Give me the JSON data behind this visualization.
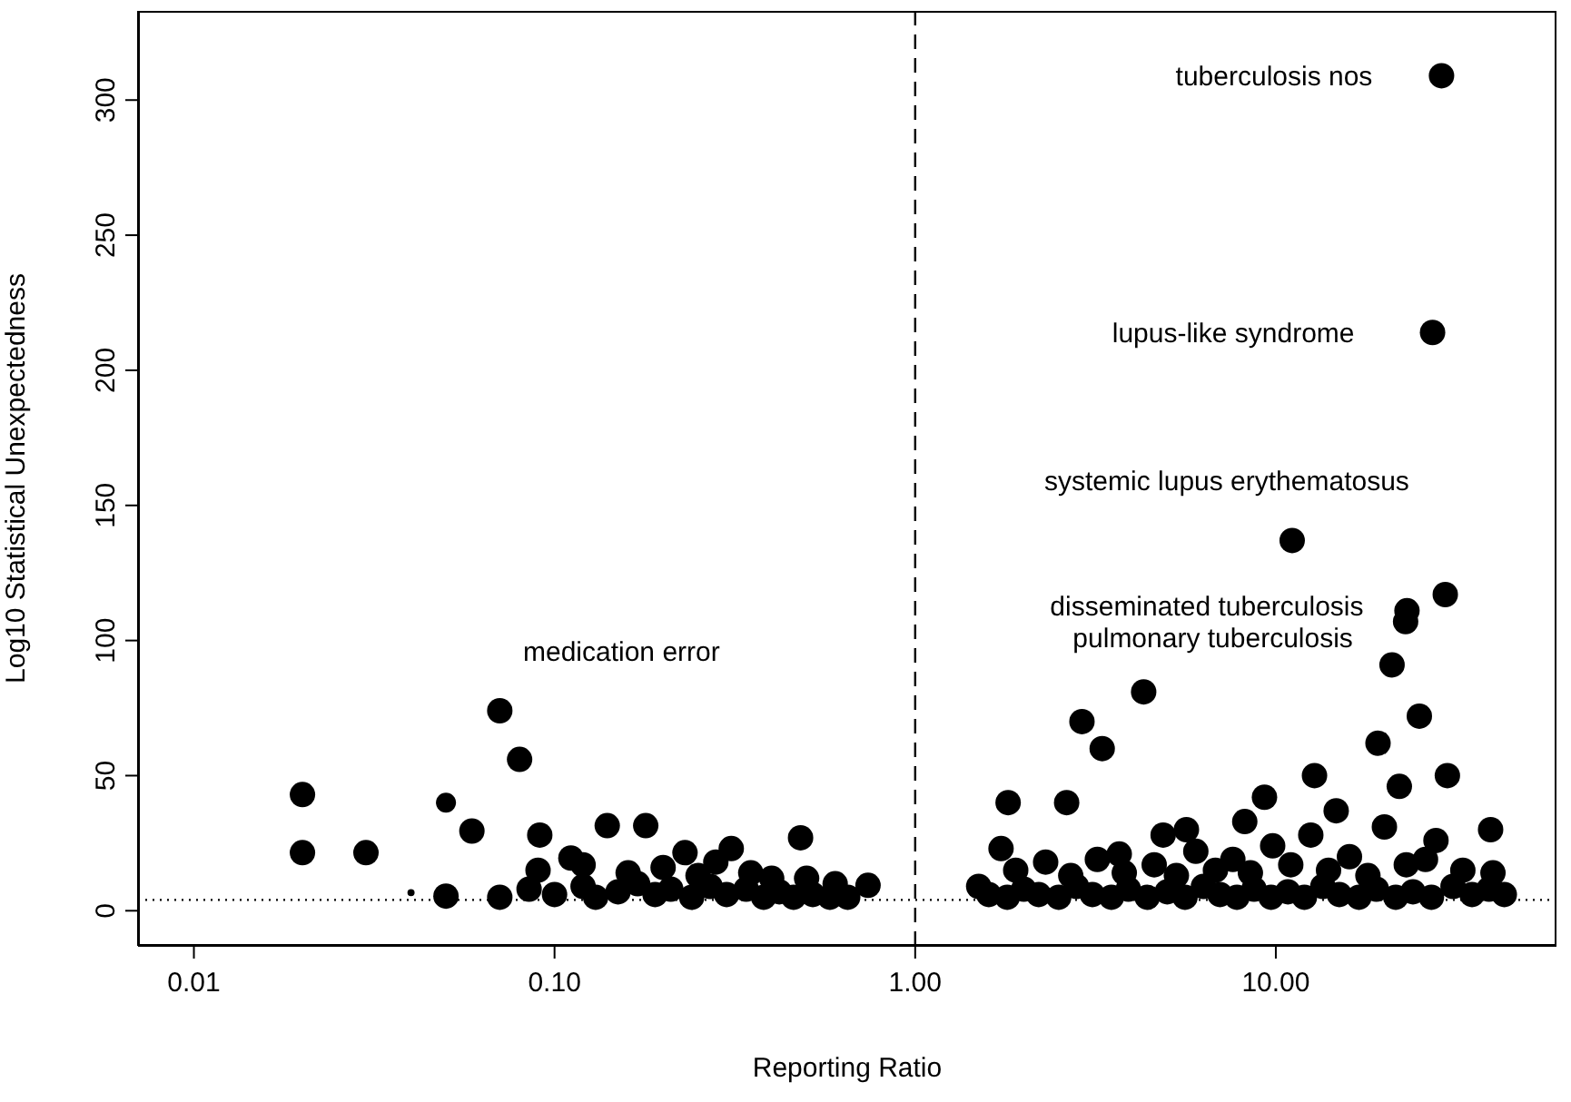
{
  "chart_data": {
    "type": "bubble",
    "xlabel": "Reporting Ratio",
    "ylabel": "Log10 Statistical Unexpectedness",
    "log": "x",
    "xlim": [
      0.007,
      60
    ],
    "ylim": [
      -13,
      333
    ],
    "xticks": [
      {
        "value": 0.01,
        "label": "0.01"
      },
      {
        "value": 0.1,
        "label": "0.10"
      },
      {
        "value": 1,
        "label": "1.00"
      },
      {
        "value": 10,
        "label": "10.00"
      }
    ],
    "yticks": [
      0,
      50,
      100,
      150,
      200,
      250,
      300
    ],
    "grid": false,
    "ref_lines": [
      {
        "axis": "x",
        "value": 1,
        "line_style": "dashed",
        "color": "#000000"
      },
      {
        "axis": "y",
        "value": 4,
        "line_style": "dotted",
        "color": "#000000"
      }
    ],
    "annotations": [
      {
        "text": "tuberculosis nos",
        "x": 28.8,
        "y": 309
      },
      {
        "text": "lupus-like syndrome",
        "x": 27.2,
        "y": 214
      },
      {
        "text": "systemic lupus erythematosus",
        "x": 11.1,
        "y": 137
      },
      {
        "text": "disseminated tuberculosis",
        "x": 29.5,
        "y": 117
      },
      {
        "text": "pulmonary tuberculosis",
        "x": 22.9,
        "y": 107
      },
      {
        "text": "medication error",
        "x": 0.0705,
        "y": 74
      }
    ],
    "series": [
      {
        "color": "#000000",
        "x": [
          0.02,
          0.02,
          0.03,
          0.04,
          0.05,
          0.0705,
          0.08,
          0.05,
          0.059,
          0.091,
          0.14,
          0.179,
          0.309,
          0.481,
          0.74,
          0.0705,
          0.23,
          0.111,
          0.085,
          0.1,
          0.12,
          0.13,
          0.15,
          0.17,
          0.19,
          0.21,
          0.24,
          0.27,
          0.3,
          0.34,
          0.38,
          0.42,
          0.46,
          0.52,
          0.58,
          0.65,
          0.09,
          0.12,
          0.16,
          0.2,
          0.25,
          0.28,
          0.35,
          0.4,
          0.5,
          0.6,
          28.8,
          27.2,
          11.1,
          29.5,
          23.1,
          22.9,
          21,
          4.3,
          2.9,
          3.3,
          25,
          19.2,
          29.9,
          22,
          12.8,
          9.3,
          14.7,
          1.81,
          2.63,
          39.4,
          5.65,
          4.87,
          8.2,
          1.73,
          3.68,
          27.8,
          43,
          1.5,
          1.6,
          1.8,
          2,
          2.2,
          2.5,
          2.8,
          3.1,
          3.5,
          3.9,
          4.4,
          5,
          5.6,
          6.3,
          7,
          7.8,
          8.7,
          9.7,
          10.8,
          12,
          13.5,
          15,
          17,
          19,
          21.5,
          24,
          27,
          31,
          35,
          39,
          1.9,
          2.3,
          2.7,
          3.2,
          3.8,
          4.6,
          5.3,
          6,
          6.8,
          7.6,
          8.5,
          9.8,
          11,
          12.5,
          14,
          16,
          18,
          20,
          23,
          26,
          33,
          40
        ],
        "values": [
          43,
          21.5,
          21.5,
          6.7,
          5.4,
          74,
          56,
          40,
          29.5,
          28,
          31.5,
          31.5,
          23,
          27,
          9.4,
          5,
          21.5,
          19.5,
          8,
          6,
          9,
          5,
          7,
          10,
          6,
          8,
          5,
          9,
          6,
          8,
          5,
          7,
          5,
          6,
          5,
          5,
          15,
          17,
          14,
          16,
          13,
          18,
          14,
          12,
          12,
          10,
          309,
          214,
          137,
          117,
          111,
          107,
          91,
          81,
          70,
          60,
          72,
          62,
          50,
          46,
          50,
          42,
          37,
          40,
          40,
          30,
          30,
          28,
          33,
          23,
          21,
          26,
          6,
          9,
          6,
          5,
          8,
          6,
          5,
          9,
          6,
          5,
          8,
          5,
          7,
          5,
          9,
          6,
          5,
          8,
          5,
          7,
          5,
          9,
          6,
          5,
          8,
          5,
          7,
          5,
          9,
          6,
          8,
          15,
          18,
          13,
          19,
          14,
          17,
          13,
          22,
          15,
          19,
          14,
          24,
          17,
          28,
          15,
          20,
          13,
          31,
          17,
          19,
          15,
          14
        ],
        "sizes": [
          1,
          1,
          1,
          0.08,
          1,
          1,
          1,
          0.62,
          1,
          1,
          1,
          1,
          1,
          1,
          1,
          1,
          1,
          1,
          1,
          1,
          1,
          1,
          1,
          1,
          1,
          1,
          1,
          1,
          1,
          1,
          1,
          1,
          1,
          1,
          1,
          1,
          1,
          1,
          1,
          1,
          1,
          1,
          1,
          1,
          1,
          1,
          1,
          1,
          1,
          1,
          1,
          1,
          1,
          1,
          1,
          1,
          1,
          1,
          1,
          1,
          1,
          1,
          1,
          1,
          1,
          1,
          1,
          1,
          1,
          1,
          1,
          1,
          1,
          1,
          1,
          1,
          1,
          1,
          1,
          1,
          1,
          1,
          1,
          1,
          1,
          1,
          1,
          1,
          1,
          1,
          1,
          1,
          1,
          1,
          1,
          1,
          1,
          1,
          1,
          1,
          1,
          1,
          1,
          1,
          1,
          1,
          1,
          1,
          1,
          1,
          1,
          1,
          1,
          1,
          1,
          1,
          1,
          1,
          1,
          1,
          1,
          1,
          1,
          1,
          1
        ]
      }
    ]
  }
}
